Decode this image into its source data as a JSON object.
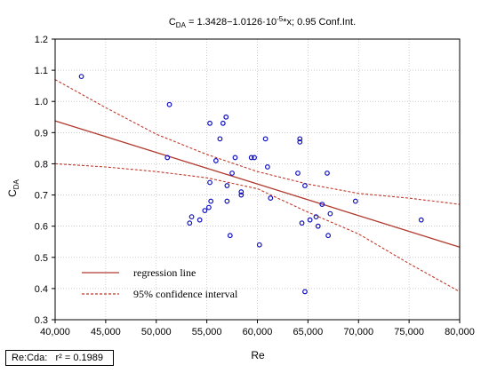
{
  "chart_data": {
    "type": "scatter",
    "title_main": "C",
    "title_sub": "DA",
    "title_rest": " = 1.3428−1.0126·10",
    "title_exp": "-5",
    "title_tail": "*x; 0.95 Conf.Int.",
    "xlabel": "Re",
    "ylabel_main": "C",
    "ylabel_sub": "DA",
    "xlim": [
      40000,
      80000
    ],
    "ylim": [
      0.3,
      1.2
    ],
    "xticks": [
      40000,
      45000,
      50000,
      55000,
      60000,
      65000,
      70000,
      75000,
      80000
    ],
    "xtick_labels": [
      "40,000",
      "45,000",
      "50,000",
      "55,000",
      "60,000",
      "65,000",
      "70,000",
      "75,000",
      "80,000"
    ],
    "yticks": [
      0.3,
      0.4,
      0.5,
      0.6,
      0.7,
      0.8,
      0.9,
      1.0,
      1.1,
      1.2
    ],
    "ytick_labels": [
      "0.3",
      "0.4",
      "0.5",
      "0.6",
      "0.7",
      "0.8",
      "0.9",
      "1.0",
      "1.1",
      "1.2"
    ],
    "grid": true,
    "legend_position": "bottom-left",
    "regression": {
      "intercept": 1.3428,
      "slope": -1.0126e-05
    },
    "confidence_upper": [
      [
        40000,
        1.07
      ],
      [
        45000,
        0.98
      ],
      [
        50000,
        0.895
      ],
      [
        55000,
        0.83
      ],
      [
        60000,
        0.775
      ],
      [
        65000,
        0.735
      ],
      [
        70000,
        0.705
      ],
      [
        75000,
        0.69
      ],
      [
        80000,
        0.67
      ]
    ],
    "confidence_lower": [
      [
        40000,
        0.8
      ],
      [
        45000,
        0.79
      ],
      [
        50000,
        0.775
      ],
      [
        55000,
        0.755
      ],
      [
        60000,
        0.72
      ],
      [
        65000,
        0.645
      ],
      [
        70000,
        0.575
      ],
      [
        75000,
        0.48
      ],
      [
        80000,
        0.39
      ]
    ],
    "points": [
      [
        42600,
        1.08
      ],
      [
        51300,
        0.99
      ],
      [
        51100,
        0.82
      ],
      [
        53300,
        0.61
      ],
      [
        53500,
        0.63
      ],
      [
        54300,
        0.62
      ],
      [
        54800,
        0.65
      ],
      [
        55200,
        0.66
      ],
      [
        55400,
        0.68
      ],
      [
        55300,
        0.74
      ],
      [
        55300,
        0.93
      ],
      [
        55900,
        0.81
      ],
      [
        56300,
        0.88
      ],
      [
        56600,
        0.93
      ],
      [
        56900,
        0.95
      ],
      [
        57000,
        0.73
      ],
      [
        57300,
        0.57
      ],
      [
        57000,
        0.68
      ],
      [
        57500,
        0.77
      ],
      [
        57800,
        0.82
      ],
      [
        58400,
        0.71
      ],
      [
        58400,
        0.7
      ],
      [
        59400,
        0.82
      ],
      [
        59700,
        0.82
      ],
      [
        60200,
        0.54
      ],
      [
        60800,
        0.88
      ],
      [
        61000,
        0.79
      ],
      [
        61300,
        0.69
      ],
      [
        64000,
        0.77
      ],
      [
        64200,
        0.88
      ],
      [
        64200,
        0.87
      ],
      [
        64400,
        0.61
      ],
      [
        64700,
        0.73
      ],
      [
        64700,
        0.39
      ],
      [
        65200,
        0.62
      ],
      [
        65800,
        0.63
      ],
      [
        66000,
        0.6
      ],
      [
        66400,
        0.67
      ],
      [
        66900,
        0.77
      ],
      [
        67000,
        0.57
      ],
      [
        67200,
        0.64
      ],
      [
        69700,
        0.68
      ],
      [
        76200,
        0.62
      ]
    ],
    "legend": [
      {
        "label": "regression line",
        "style": "solid"
      },
      {
        "label": "95% confidence interval",
        "style": "dashed"
      }
    ],
    "footer": "Re:Cda:   r² = 0.1989",
    "colors": {
      "regression": "#b03a2e",
      "confidence": "#c0392b",
      "points": "#1010c0",
      "grid": "#b0b0b0",
      "frame": "#000000"
    }
  }
}
